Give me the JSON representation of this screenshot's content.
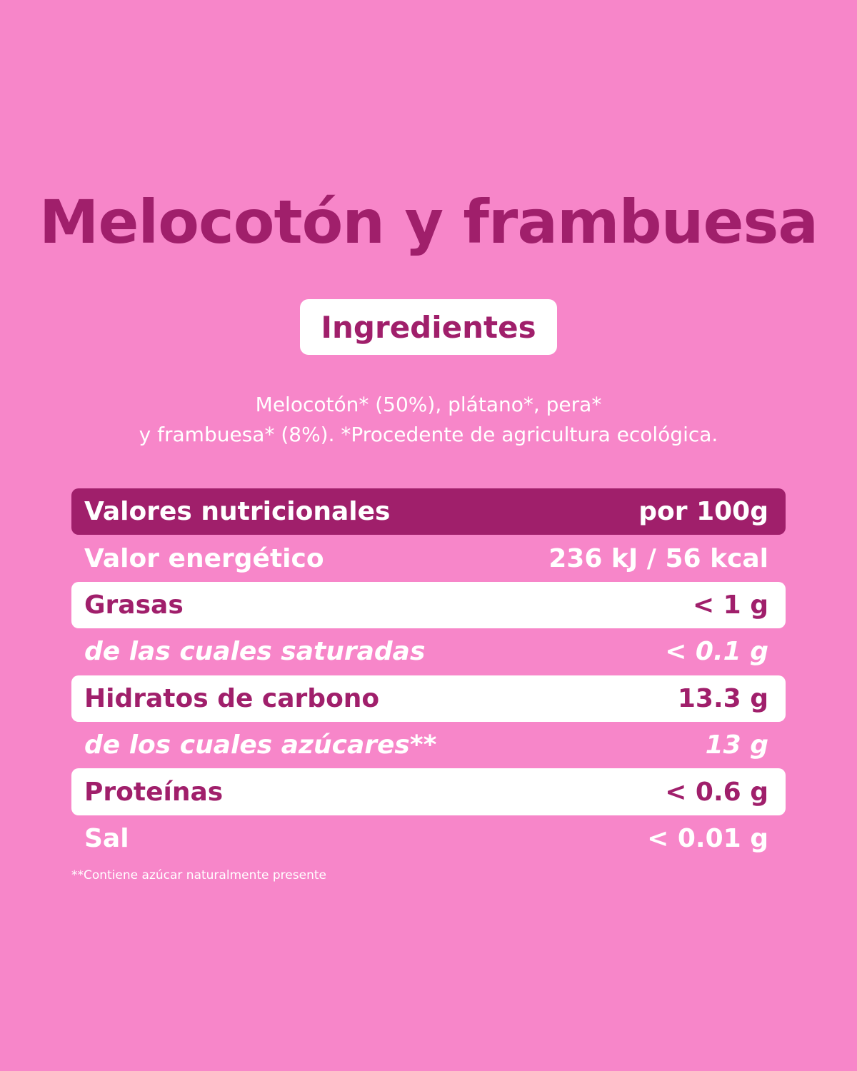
{
  "title": "Melocotón y frambuesa",
  "badge": "Ingredientes",
  "ingredients": [
    "Melocotón* (50%), plátano*, pera*",
    "y frambuesa* (8%). *Procedente de agricultura ecológica."
  ],
  "table": {
    "header": [
      "Valores nutricionales",
      "por 100g"
    ],
    "rows": [
      [
        "Valor energético",
        "236 kJ / 56 kcal"
      ],
      [
        "Grasas",
        "< 1 g"
      ],
      [
        "de las cuales saturadas",
        "< 0.1 g"
      ],
      [
        "Hidratos de carbono",
        "13.3 g"
      ],
      [
        "de los cuales azúcares**",
        "13 g"
      ],
      [
        "Proteínas",
        "< 0.6 g"
      ],
      [
        "Sal",
        "< 0.01 g"
      ]
    ]
  },
  "footnote": "**Contiene azúcar naturalmente presente"
}
